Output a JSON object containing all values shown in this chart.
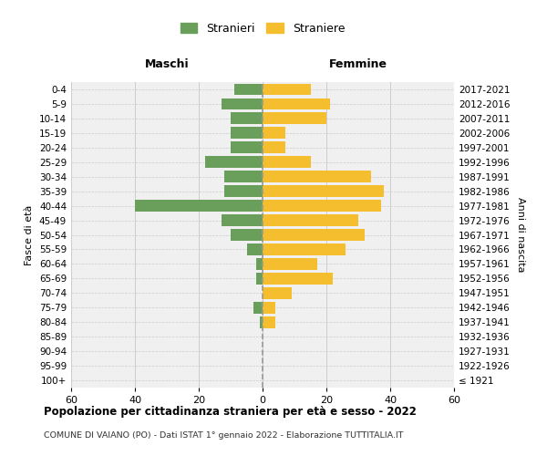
{
  "age_groups": [
    "100+",
    "95-99",
    "90-94",
    "85-89",
    "80-84",
    "75-79",
    "70-74",
    "65-69",
    "60-64",
    "55-59",
    "50-54",
    "45-49",
    "40-44",
    "35-39",
    "30-34",
    "25-29",
    "20-24",
    "15-19",
    "10-14",
    "5-9",
    "0-4"
  ],
  "birth_years": [
    "≤ 1921",
    "1922-1926",
    "1927-1931",
    "1932-1936",
    "1937-1941",
    "1942-1946",
    "1947-1951",
    "1952-1956",
    "1957-1961",
    "1962-1966",
    "1967-1971",
    "1972-1976",
    "1977-1981",
    "1982-1986",
    "1987-1991",
    "1992-1996",
    "1997-2001",
    "2002-2006",
    "2007-2011",
    "2012-2016",
    "2017-2021"
  ],
  "males": [
    0,
    0,
    0,
    0,
    1,
    3,
    0,
    2,
    2,
    5,
    10,
    13,
    40,
    12,
    12,
    18,
    10,
    10,
    10,
    13,
    9
  ],
  "females": [
    0,
    0,
    0,
    0,
    4,
    4,
    9,
    22,
    17,
    26,
    32,
    30,
    37,
    38,
    34,
    15,
    7,
    7,
    20,
    21,
    15
  ],
  "male_color": "#6a9e5b",
  "female_color": "#f5be2e",
  "bar_height": 0.8,
  "xlim": [
    -60,
    60
  ],
  "xticks": [
    -60,
    -40,
    -20,
    0,
    20,
    40,
    60
  ],
  "xticklabels": [
    "60",
    "40",
    "20",
    "0",
    "20",
    "40",
    "60"
  ],
  "title": "Popolazione per cittadinanza straniera per età e sesso - 2022",
  "subtitle": "COMUNE DI VAIANO (PO) - Dati ISTAT 1° gennaio 2022 - Elaborazione TUTTITALIA.IT",
  "ylabel_left": "Fasce di età",
  "ylabel_right": "Anni di nascita",
  "legend_stranieri": "Stranieri",
  "legend_straniere": "Straniere",
  "maschi_label": "Maschi",
  "femmine_label": "Femmine",
  "bg_color": "#f0f0f0",
  "grid_color": "#cccccc"
}
